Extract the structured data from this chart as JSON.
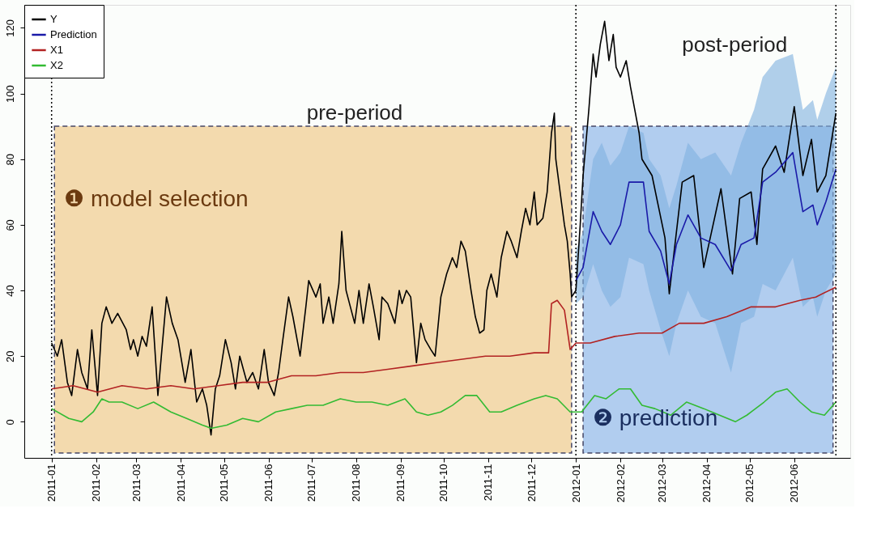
{
  "chart_data": {
    "type": "line",
    "xlim": [
      "2010-12-13",
      "2012-07-10"
    ],
    "ylim": [
      -11,
      127
    ],
    "yticks": [
      0,
      20,
      40,
      60,
      80,
      100,
      120
    ],
    "xticks": [
      "2011-01",
      "2011-02",
      "2011-03",
      "2011-04",
      "2011-05",
      "2011-06",
      "2011-07",
      "2011-08",
      "2011-09",
      "2011-10",
      "2011-11",
      "2011-12",
      "2012-01",
      "2012-02",
      "2012-03",
      "2012-04",
      "2012-05",
      "2012-06"
    ],
    "legend": "top left",
    "grid": false,
    "line_style": "solid",
    "marker": "none",
    "series": [
      {
        "name": "Y",
        "color": "#000000",
        "x": [
          "2011-01-01",
          "2011-01-05",
          "2011-01-08",
          "2011-01-12",
          "2011-01-15",
          "2011-01-19",
          "2011-01-22",
          "2011-01-26",
          "2011-01-29",
          "2011-01-31",
          "2011-02-02",
          "2011-02-05",
          "2011-02-08",
          "2011-02-12",
          "2011-02-16",
          "2011-02-22",
          "2011-02-25",
          "2011-02-27",
          "2011-03-02",
          "2011-03-05",
          "2011-03-08",
          "2011-03-12",
          "2011-03-16",
          "2011-03-22",
          "2011-03-26",
          "2011-03-30",
          "2011-04-04",
          "2011-04-08",
          "2011-04-12",
          "2011-04-16",
          "2011-04-19",
          "2011-04-22",
          "2011-04-25",
          "2011-04-28",
          "2011-05-02",
          "2011-05-06",
          "2011-05-09",
          "2011-05-12",
          "2011-05-17",
          "2011-05-21",
          "2011-05-25",
          "2011-05-29",
          "2011-06-01",
          "2011-06-05",
          "2011-06-08",
          "2011-06-11",
          "2011-06-15",
          "2011-06-18",
          "2011-06-23",
          "2011-06-27",
          "2011-06-29",
          "2011-07-04",
          "2011-07-07",
          "2011-07-09",
          "2011-07-13",
          "2011-07-16",
          "2011-07-20",
          "2011-07-22",
          "2011-07-25",
          "2011-07-28",
          "2011-07-31",
          "2011-08-03",
          "2011-08-06",
          "2011-08-10",
          "2011-08-13",
          "2011-08-17",
          "2011-08-19",
          "2011-08-23",
          "2011-08-28",
          "2011-08-31",
          "2011-09-02",
          "2011-09-05",
          "2011-09-08",
          "2011-09-12",
          "2011-09-15",
          "2011-09-18",
          "2011-09-22",
          "2011-09-25",
          "2011-09-29",
          "2011-10-03",
          "2011-10-07",
          "2011-10-10",
          "2011-10-13",
          "2011-10-16",
          "2011-10-20",
          "2011-10-23",
          "2011-10-26",
          "2011-10-29",
          "2011-10-31",
          "2011-11-03",
          "2011-11-07",
          "2011-11-10",
          "2011-11-14",
          "2011-11-17",
          "2011-11-21",
          "2011-11-24",
          "2011-11-27",
          "2011-11-30",
          "2011-12-03",
          "2011-12-05",
          "2011-12-09",
          "2011-12-12",
          "2011-12-15",
          "2011-12-17",
          "2011-12-18",
          "2011-12-21",
          "2011-12-24",
          "2011-12-26",
          "2011-12-28",
          "2011-12-29",
          "2012-01-01",
          "2012-01-04",
          "2012-01-06",
          "2012-01-10",
          "2012-01-13",
          "2012-01-15",
          "2012-01-18",
          "2012-01-21",
          "2012-01-24",
          "2012-01-27",
          "2012-01-29",
          "2012-02-01",
          "2012-02-05",
          "2012-02-08",
          "2012-02-11",
          "2012-02-14",
          "2012-02-16",
          "2012-02-23",
          "2012-03-03",
          "2012-03-06",
          "2012-03-15",
          "2012-03-23",
          "2012-03-30",
          "2012-04-11",
          "2012-04-19",
          "2012-04-24",
          "2012-05-02",
          "2012-05-06",
          "2012-05-10",
          "2012-05-19",
          "2012-05-25",
          "2012-06-01",
          "2012-06-07",
          "2012-06-13",
          "2012-06-17",
          "2012-06-23",
          "2012-06-30"
        ],
        "values": [
          24,
          20,
          25,
          12,
          8,
          22,
          15,
          10,
          28,
          18,
          8,
          30,
          35,
          30,
          33,
          28,
          22,
          25,
          20,
          26,
          23,
          35,
          8,
          38,
          30,
          25,
          12,
          22,
          6,
          10,
          5,
          -4,
          10,
          14,
          25,
          18,
          10,
          20,
          12,
          15,
          10,
          22,
          12,
          8,
          15,
          25,
          38,
          32,
          20,
          35,
          43,
          38,
          42,
          30,
          38,
          30,
          42,
          58,
          40,
          35,
          30,
          40,
          30,
          42,
          35,
          25,
          38,
          36,
          30,
          40,
          36,
          40,
          38,
          18,
          30,
          25,
          22,
          20,
          38,
          45,
          50,
          47,
          55,
          52,
          40,
          32,
          27,
          28,
          40,
          45,
          38,
          50,
          58,
          55,
          50,
          58,
          65,
          60,
          70,
          60,
          62,
          70,
          88,
          94,
          80,
          70,
          60,
          55,
          45,
          38,
          40,
          60,
          75,
          95,
          112,
          105,
          115,
          122,
          110,
          118,
          108,
          105,
          110,
          102,
          95,
          88,
          80,
          75,
          56,
          39,
          73,
          75,
          47,
          71,
          45,
          68,
          70,
          54,
          77,
          84,
          76,
          96,
          75,
          86,
          70,
          75,
          94
        ]
      },
      {
        "name": "Prediction",
        "color": "#1a1aa8",
        "x": [
          "2012-01-01",
          "2012-01-06",
          "2012-01-13",
          "2012-01-19",
          "2012-01-25",
          "2012-02-01",
          "2012-02-07",
          "2012-02-17",
          "2012-02-21",
          "2012-02-29",
          "2012-03-06",
          "2012-03-11",
          "2012-03-19",
          "2012-03-28",
          "2012-04-07",
          "2012-04-18",
          "2012-04-25",
          "2012-05-04",
          "2012-05-10",
          "2012-05-19",
          "2012-05-31",
          "2012-06-07",
          "2012-06-14",
          "2012-06-17",
          "2012-06-23",
          "2012-06-30"
        ],
        "values": [
          43,
          47,
          64,
          58,
          54,
          60,
          73,
          73,
          58,
          52,
          42,
          54,
          63,
          56,
          54,
          46,
          54,
          56,
          73,
          76,
          82,
          64,
          66,
          60,
          67,
          77
        ],
        "lower": [
          36,
          38,
          48,
          40,
          35,
          38,
          50,
          48,
          40,
          28,
          20,
          30,
          40,
          32,
          30,
          15,
          30,
          32,
          42,
          40,
          50,
          35,
          38,
          32,
          40,
          45
        ],
        "upper": [
          52,
          58,
          80,
          85,
          78,
          82,
          90,
          88,
          80,
          75,
          65,
          72,
          85,
          80,
          82,
          75,
          85,
          95,
          105,
          110,
          112,
          95,
          98,
          92,
          100,
          108
        ]
      },
      {
        "name": "X1",
        "color": "#b22222",
        "x": [
          "2011-01-01",
          "2011-01-16",
          "2011-02-02",
          "2011-02-19",
          "2011-03-08",
          "2011-03-25",
          "2011-04-10",
          "2011-04-27",
          "2011-05-14",
          "2011-05-31",
          "2011-06-17",
          "2011-07-04",
          "2011-07-21",
          "2011-08-06",
          "2011-08-23",
          "2011-09-09",
          "2011-09-26",
          "2011-10-13",
          "2011-10-30",
          "2011-11-16",
          "2011-12-03",
          "2011-12-13",
          "2011-12-15",
          "2011-12-19",
          "2011-12-24",
          "2011-12-28",
          "2012-01-01",
          "2012-01-11",
          "2012-01-28",
          "2012-02-14",
          "2012-03-01",
          "2012-03-13",
          "2012-03-30",
          "2012-04-15",
          "2012-05-02",
          "2012-05-19",
          "2012-06-05",
          "2012-06-16",
          "2012-06-30"
        ],
        "values": [
          10,
          11,
          9,
          11,
          10,
          11,
          10,
          11,
          12,
          12,
          14,
          14,
          15,
          15,
          16,
          17,
          18,
          19,
          20,
          20,
          21,
          21,
          36,
          37,
          34,
          22,
          24,
          24,
          26,
          27,
          27,
          30,
          30,
          32,
          35,
          35,
          37,
          38,
          41
        ]
      },
      {
        "name": "X2",
        "color": "#33bb33",
        "x": [
          "2011-01-01",
          "2011-01-13",
          "2011-01-22",
          "2011-01-30",
          "2011-02-05",
          "2011-02-10",
          "2011-02-19",
          "2011-03-02",
          "2011-03-13",
          "2011-03-25",
          "2011-04-05",
          "2011-04-16",
          "2011-04-22",
          "2011-05-03",
          "2011-05-14",
          "2011-05-25",
          "2011-06-06",
          "2011-06-17",
          "2011-06-28",
          "2011-07-09",
          "2011-07-21",
          "2011-08-01",
          "2011-08-12",
          "2011-08-23",
          "2011-09-04",
          "2011-09-12",
          "2011-09-20",
          "2011-09-29",
          "2011-10-07",
          "2011-10-16",
          "2011-10-24",
          "2011-11-02",
          "2011-11-10",
          "2011-11-21",
          "2011-12-03",
          "2011-12-11",
          "2011-12-19",
          "2011-12-28",
          "2012-01-05",
          "2012-01-14",
          "2012-01-22",
          "2012-01-31",
          "2012-02-08",
          "2012-02-16",
          "2012-02-25",
          "2012-03-07",
          "2012-03-18",
          "2012-03-30",
          "2012-04-10",
          "2012-04-21",
          "2012-04-29",
          "2012-05-11",
          "2012-05-19",
          "2012-05-27",
          "2012-06-05",
          "2012-06-13",
          "2012-06-22",
          "2012-06-30"
        ],
        "values": [
          4,
          1,
          0,
          3,
          7,
          6,
          6,
          4,
          6,
          3,
          1,
          -1,
          -2,
          -1,
          1,
          0,
          3,
          4,
          5,
          5,
          7,
          6,
          6,
          5,
          7,
          3,
          2,
          3,
          5,
          8,
          8,
          3,
          3,
          5,
          7,
          8,
          7,
          3,
          3,
          8,
          7,
          10,
          10,
          5,
          4,
          2,
          6,
          4,
          2,
          0,
          2,
          6,
          9,
          10,
          6,
          3,
          2,
          6
        ]
      }
    ],
    "bands": [
      {
        "axis": "x",
        "from": "2011-01-03",
        "to": "2011-12-29",
        "label": "❶ model selection",
        "color": "#f3d7a6"
      },
      {
        "axis": "x",
        "from": "2012-01-06",
        "to": "2012-06-28",
        "label": "❷ prediction",
        "color": "#a9c8ee"
      }
    ],
    "ref_lines": [
      {
        "axis": "x",
        "value": "2011-01-01",
        "line_style": "dotted"
      },
      {
        "axis": "x",
        "value": "2012-01-01",
        "line_style": "dotted"
      },
      {
        "axis": "x",
        "value": "2012-06-30",
        "line_style": "dotted"
      }
    ],
    "annotations": [
      "pre-period",
      "post-period"
    ]
  }
}
